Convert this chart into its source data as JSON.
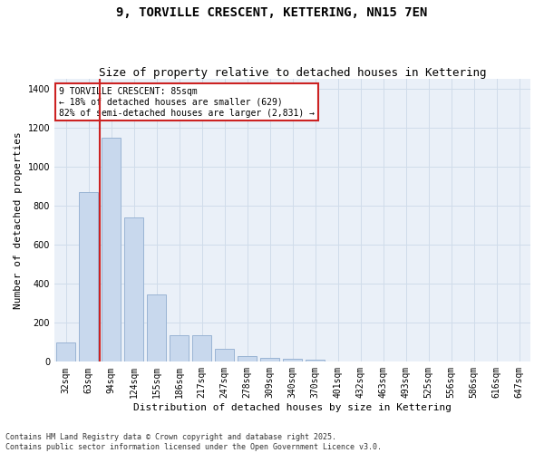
{
  "title": "9, TORVILLE CRESCENT, KETTERING, NN15 7EN",
  "subtitle": "Size of property relative to detached houses in Kettering",
  "xlabel": "Distribution of detached houses by size in Kettering",
  "ylabel": "Number of detached properties",
  "categories": [
    "32sqm",
    "63sqm",
    "94sqm",
    "124sqm",
    "155sqm",
    "186sqm",
    "217sqm",
    "247sqm",
    "278sqm",
    "309sqm",
    "340sqm",
    "370sqm",
    "401sqm",
    "432sqm",
    "463sqm",
    "493sqm",
    "525sqm",
    "556sqm",
    "586sqm",
    "616sqm",
    "647sqm"
  ],
  "values": [
    100,
    870,
    1150,
    740,
    345,
    135,
    135,
    65,
    30,
    20,
    15,
    10,
    0,
    0,
    0,
    0,
    0,
    0,
    0,
    0,
    0
  ],
  "bar_color": "#c8d8ed",
  "bar_edge_color": "#9ab4d4",
  "grid_color": "#d0dcea",
  "bg_color": "#eaf0f8",
  "vline_color": "#cc2222",
  "vline_x_index": 2,
  "annotation_text": "9 TORVILLE CRESCENT: 85sqm\n← 18% of detached houses are smaller (629)\n82% of semi-detached houses are larger (2,831) →",
  "annotation_box_color": "#cc2222",
  "ylim": [
    0,
    1450
  ],
  "yticks": [
    0,
    200,
    400,
    600,
    800,
    1000,
    1200,
    1400
  ],
  "footer": "Contains HM Land Registry data © Crown copyright and database right 2025.\nContains public sector information licensed under the Open Government Licence v3.0.",
  "title_fontsize": 10,
  "subtitle_fontsize": 9,
  "tick_fontsize": 7,
  "ylabel_fontsize": 8,
  "xlabel_fontsize": 8,
  "footer_fontsize": 6,
  "annotation_fontsize": 7
}
